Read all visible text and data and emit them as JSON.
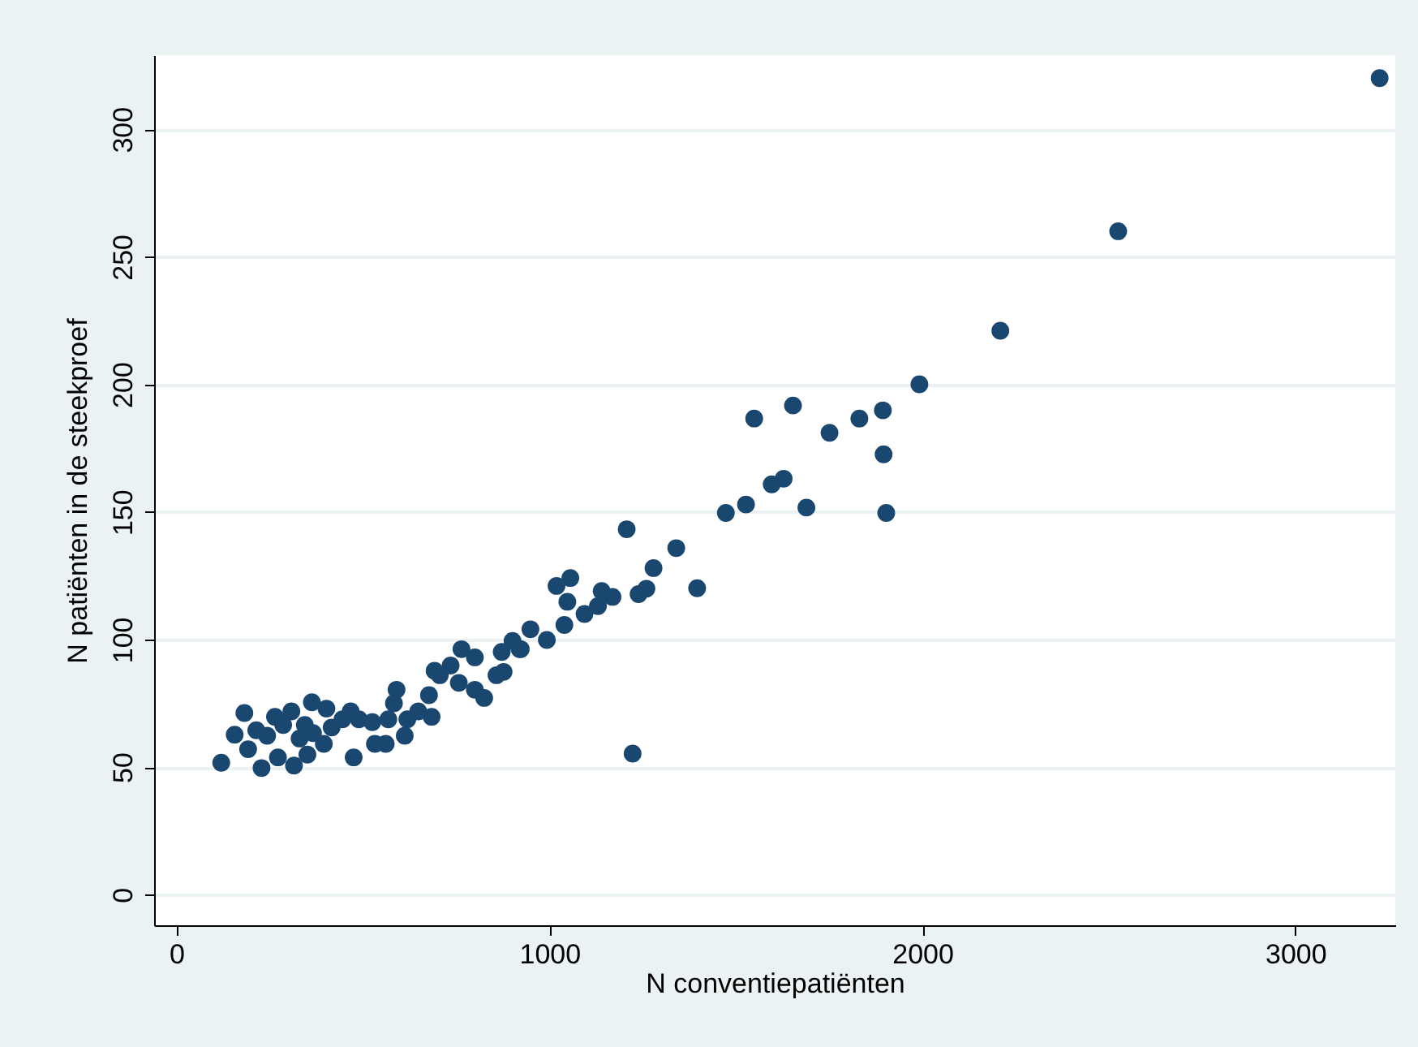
{
  "chart_data": {
    "type": "scatter",
    "xlabel": "N conventiepatiënten",
    "ylabel": "N patiënten in de steekproef",
    "xlim": [
      -60,
      3268
    ],
    "ylim": [
      -12,
      329
    ],
    "xticks": [
      0,
      1000,
      2000,
      3000
    ],
    "yticks": [
      0,
      50,
      100,
      150,
      200,
      250,
      300
    ],
    "grid": "y",
    "marker": "circle",
    "series": [
      {
        "color": "#1a476f",
        "x": [
          3226,
          2525,
          2209,
          1992,
          1894,
          1831,
          1751,
          1653,
          1549,
          1896,
          1628,
          1596,
          1473,
          1527,
          1689,
          1903,
          1207,
          1340,
          1279,
          1396,
          1019,
          1056,
          1048,
          1140,
          1169,
          1239,
          1260,
          1094,
          1130,
          1040,
          949,
          993,
          923,
          1223,
          764,
          800,
          735,
          706,
          757,
          800,
          825,
          858,
          877,
          872,
          901,
          920,
          120,
          182,
          156,
          192,
          228,
          264,
          272,
          308,
          315,
          330,
          363,
          366,
          351,
          402,
          395,
          445,
          475,
          489,
          525,
          532,
          561,
          590,
          583,
          568,
          612,
          648,
          677,
          684,
          619,
          214,
          286,
          243,
          344,
          416,
          467,
          692
        ],
        "values": [
          320,
          260,
          221,
          200,
          189.8,
          186.6,
          181,
          191.7,
          186.6,
          172.6,
          163,
          160.8,
          149.6,
          152.9,
          151.7,
          149.6,
          143.2,
          135.8,
          128,
          120.1,
          121,
          124.1,
          114.8,
          119,
          116.7,
          117.8,
          119.9,
          110,
          113.1,
          105.7,
          104,
          99.8,
          96.2,
          55.3,
          96.2,
          93,
          89.8,
          86,
          83,
          80.3,
          77.1,
          86,
          87.3,
          95.1,
          99.4,
          96.2,
          51.7,
          71.2,
          62.7,
          57,
          49.6,
          69.7,
          53.8,
          71.8,
          50.6,
          61.2,
          75.4,
          63.3,
          54.9,
          72.9,
          59.1,
          68.7,
          53.8,
          68.7,
          67.6,
          59.1,
          59.1,
          80.3,
          75,
          68.7,
          62.3,
          71.8,
          78.2,
          69.7,
          68.7,
          64.4,
          66.5,
          62.3,
          66.5,
          65.5,
          71.8,
          87.7
        ]
      }
    ]
  }
}
